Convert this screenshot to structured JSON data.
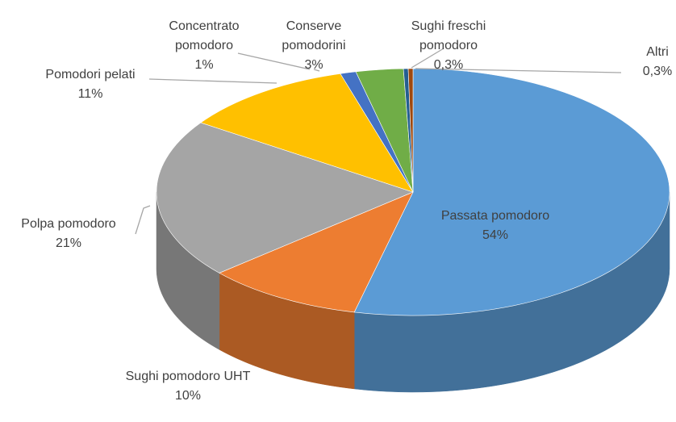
{
  "chart_data": {
    "type": "pie",
    "categories": [
      "Passata pomodoro",
      "Sughi pomodoro UHT",
      "Polpa pomodoro",
      "Pomodori pelati",
      "Concentrato pomodoro",
      "Conserve pomodorini",
      "Sughi freschi pomodoro",
      "Altri"
    ],
    "values": [
      54,
      10,
      21,
      11,
      1,
      3,
      0.3,
      0.3
    ],
    "value_labels": [
      "54%",
      "10%",
      "21%",
      "11%",
      "1%",
      "3%",
      "0,3%",
      "0,3%"
    ],
    "colors": [
      "#5b9bd5",
      "#ed7d31",
      "#a5a5a5",
      "#ffc000",
      "#4472c4",
      "#70ad47",
      "#255e91",
      "#9e480e"
    ]
  }
}
